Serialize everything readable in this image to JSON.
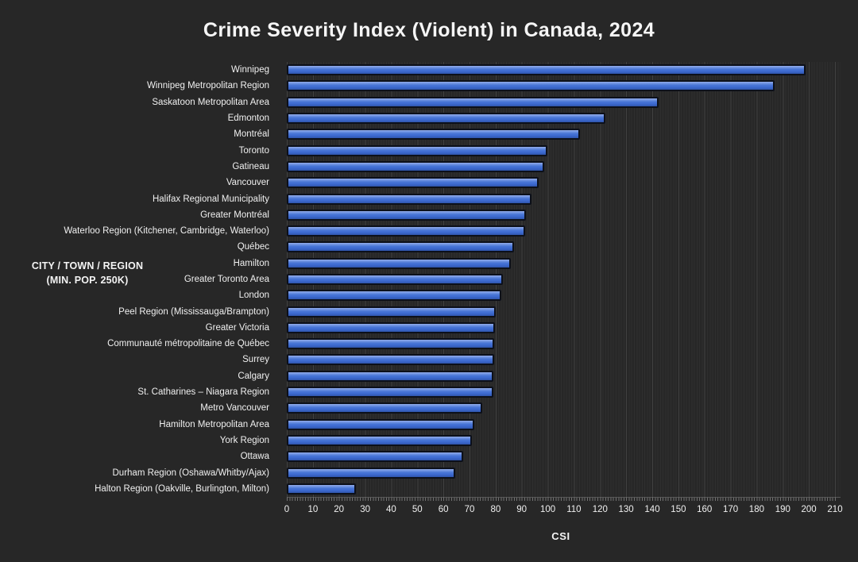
{
  "title": "Crime Severity Index (Violent) in Canada, 2024",
  "chart_data": {
    "type": "bar",
    "orientation": "horizontal",
    "title": "Crime Severity Index (Violent) in Canada, 2024",
    "xlabel": "CSI",
    "ylabel_line1": "CITY / TOWN / REGION",
    "ylabel_line2": "(MIN. POP. 250K)",
    "xlim": [
      0,
      210
    ],
    "xticks": [
      0,
      10,
      20,
      30,
      40,
      50,
      60,
      70,
      80,
      90,
      100,
      110,
      120,
      130,
      140,
      150,
      160,
      170,
      180,
      190,
      200,
      210
    ],
    "grid": "minor vertical gridlines every 1 unit, major every 10 units",
    "legend": "none",
    "categories": [
      "Winnipeg",
      "Winnipeg Metropolitan Region",
      "Saskatoon Metropolitan Area",
      "Edmonton",
      "Montréal",
      "Toronto",
      "Gatineau",
      "Vancouver",
      "Halifax Regional Municipality",
      "Greater Montréal",
      "Waterloo Region (Kitchener, Cambridge, Waterloo)",
      "Québec",
      "Hamilton",
      "Greater Toronto Area",
      "London",
      "Peel Region (Mississauga/Brampton)",
      "Greater Victoria",
      "Communauté métropolitaine de Québec",
      "Surrey",
      "Calgary",
      "St. Catharines – Niagara Region",
      "Metro Vancouver",
      "Hamilton Metropolitan Area",
      "York Region",
      "Ottawa",
      "Durham Region (Oshawa/Whitby/Ajax)",
      "Halton Region (Oakville, Burlington, Milton)"
    ],
    "values": [
      198.8,
      186.9,
      142.5,
      122.0,
      112.3,
      99.8,
      98.6,
      96.4,
      93.7,
      91.6,
      91.4,
      87.1,
      85.7,
      82.7,
      82.2,
      80.1,
      79.8,
      79.5,
      79.4,
      79.2,
      79.0,
      75.0,
      71.9,
      71.0,
      67.5,
      64.6,
      26.5
    ],
    "colors": {
      "background": "#272727",
      "bar_top": "#93ade9",
      "bar_mid": "#4a77d7",
      "bar_bottom": "#2f54a9",
      "bar_outline": "#0c101a",
      "text": "#f2f2f2"
    }
  }
}
